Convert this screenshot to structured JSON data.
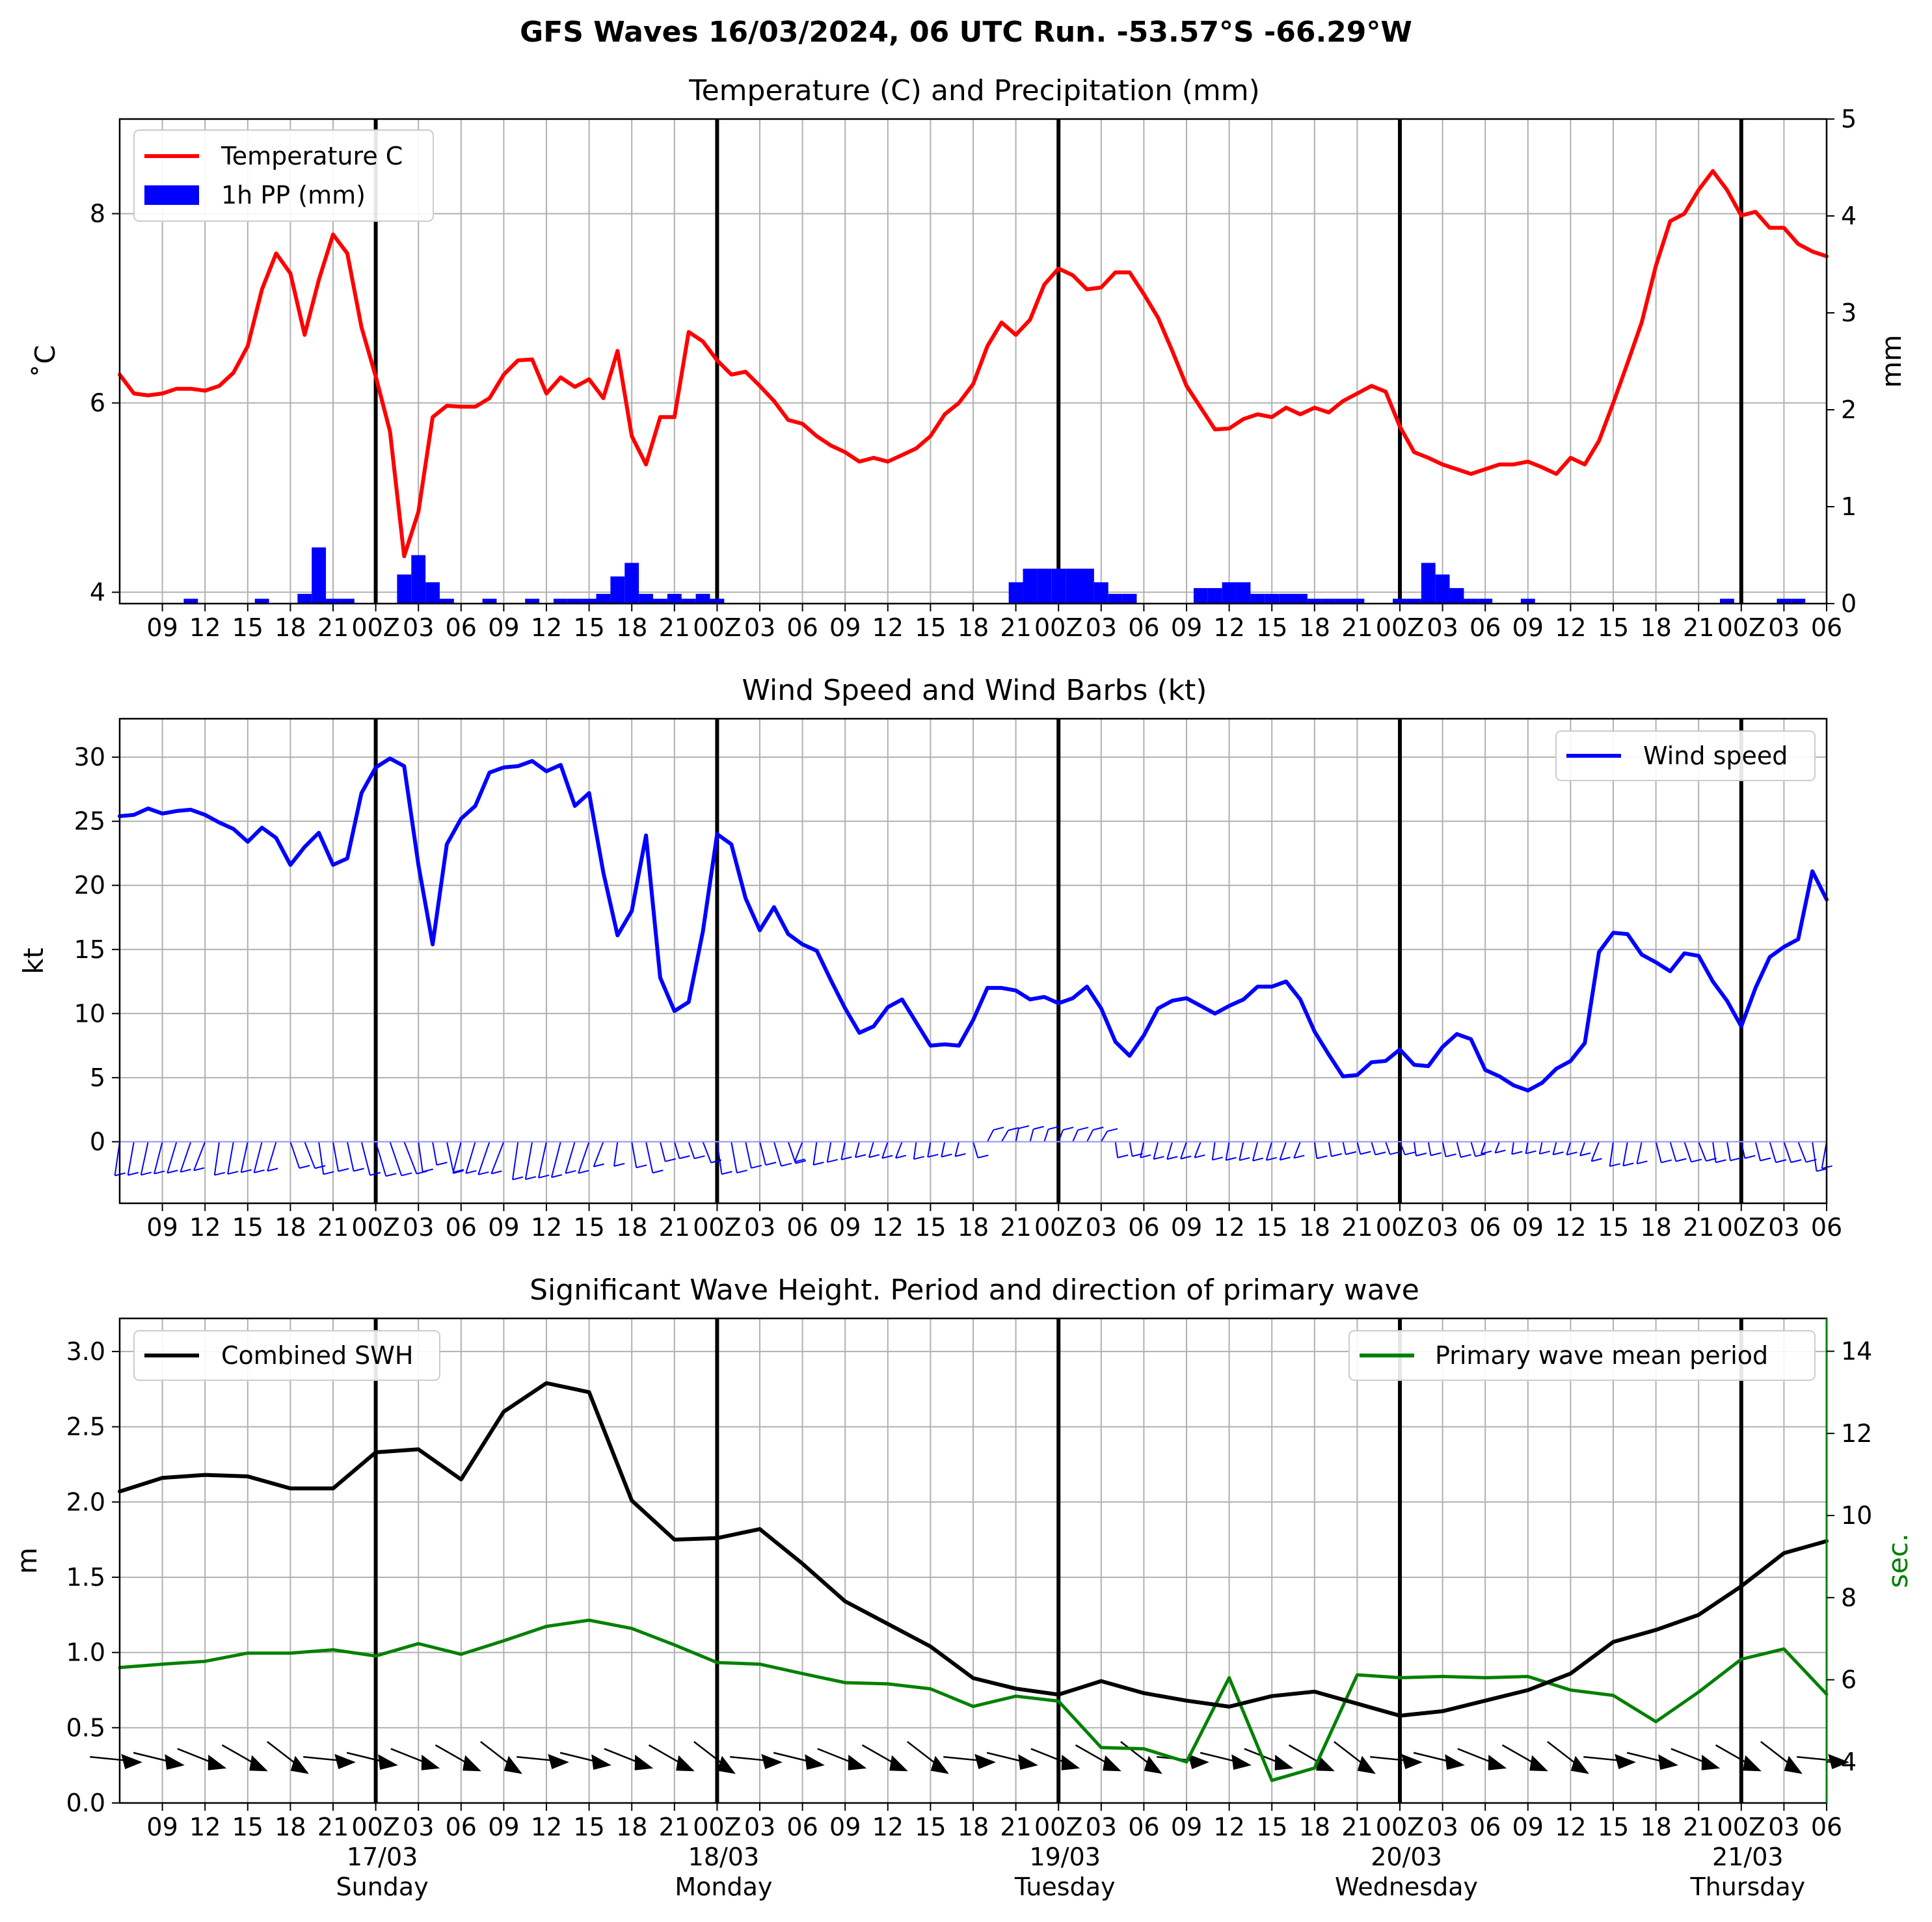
{
  "figure": {
    "suptitle": "GFS Waves 16/03/2024, 06 UTC Run. -53.57°S -66.29°W"
  },
  "chart_data": [
    {
      "type": "line",
      "title": "Temperature (C) and Precipitation (mm)",
      "ylabel": "$^\\circ$C",
      "ylabel_display": "˚C",
      "y2label": "mm",
      "ylim": [
        3.88,
        9.0
      ],
      "y2lim": [
        0,
        5
      ],
      "yticks": [
        4,
        6,
        8
      ],
      "y2ticks": [
        0,
        1,
        2,
        3,
        4,
        5
      ],
      "xlim_hours": [
        0,
        120
      ],
      "grid": true,
      "legend": "top-left",
      "legend_labels": [
        "Temperature C",
        "1h PP (mm)"
      ],
      "colors": {
        "temperature": "#ff0000",
        "precip": "#0000ff"
      },
      "temperature_x_hours": [
        0,
        1,
        2,
        3,
        4,
        5,
        6,
        7,
        8,
        9,
        10,
        11,
        12,
        13,
        14,
        15,
        16,
        17,
        18,
        19,
        20,
        21,
        22,
        23,
        24,
        25,
        26,
        27,
        28,
        29,
        30,
        31,
        32,
        33,
        34,
        35,
        36,
        37,
        38,
        39,
        40,
        41,
        42,
        43,
        44,
        45,
        46,
        47,
        48,
        49,
        50,
        51,
        52,
        53,
        54,
        55,
        56,
        57,
        58,
        59,
        60,
        61,
        62,
        63,
        64,
        65,
        66,
        67,
        68,
        69,
        70,
        71,
        72,
        73,
        74,
        75,
        76,
        77,
        78,
        79,
        80,
        81,
        82,
        83,
        84,
        85,
        86,
        87,
        88,
        89,
        90,
        91,
        92,
        93,
        94,
        95,
        96,
        97,
        98,
        99,
        100,
        101,
        102,
        103,
        104,
        105,
        106,
        107,
        108,
        109,
        110,
        111,
        112,
        113,
        114,
        115,
        116,
        117,
        118,
        119,
        120
      ],
      "temperature_values": [
        6.3,
        6.1,
        6.08,
        6.1,
        6.15,
        6.15,
        6.13,
        6.18,
        6.32,
        6.6,
        7.2,
        7.58,
        7.37,
        6.72,
        7.3,
        7.78,
        7.58,
        6.8,
        6.28,
        5.7,
        4.38,
        4.85,
        5.85,
        5.97,
        5.96,
        5.96,
        6.05,
        6.3,
        6.45,
        6.46,
        6.1,
        6.27,
        6.17,
        6.25,
        6.05,
        6.55,
        5.65,
        5.35,
        5.85,
        5.85,
        6.75,
        6.65,
        6.45,
        6.3,
        6.33,
        6.18,
        6.02,
        5.82,
        5.78,
        5.65,
        5.55,
        5.48,
        5.38,
        5.42,
        5.38,
        5.45,
        5.52,
        5.65,
        5.88,
        6.0,
        6.2,
        6.6,
        6.85,
        6.72,
        6.88,
        7.25,
        7.42,
        7.35,
        7.2,
        7.22,
        7.38,
        7.38,
        7.15,
        6.9,
        6.55,
        6.18,
        5.95,
        5.72,
        5.73,
        5.83,
        5.88,
        5.85,
        5.95,
        5.88,
        5.95,
        5.9,
        6.02,
        6.1,
        6.18,
        6.12,
        5.75,
        5.48,
        5.42,
        5.35,
        5.3,
        5.25,
        5.3,
        5.35,
        5.35,
        5.38,
        5.32,
        5.25,
        5.42,
        5.35,
        5.6,
        6.0,
        6.42,
        6.85,
        7.45,
        7.92,
        8.0,
        8.25,
        8.45,
        8.25,
        7.98,
        8.02,
        7.85,
        7.85,
        7.68,
        7.6,
        7.55
      ],
      "precip_x_hours": [
        5,
        10,
        13,
        14,
        15,
        16,
        20,
        21,
        22,
        23,
        26,
        29,
        31,
        32,
        33,
        34,
        35,
        36,
        37,
        38,
        39,
        40,
        41,
        42,
        63,
        64,
        65,
        66,
        67,
        68,
        69,
        70,
        71,
        76,
        77,
        78,
        79,
        80,
        81,
        82,
        83,
        84,
        85,
        86,
        87,
        90,
        91,
        92,
        93,
        94,
        95,
        96,
        99,
        113,
        117,
        118
      ],
      "precip_values": [
        0.05,
        0.05,
        0.1,
        0.58,
        0.05,
        0.05,
        0.3,
        0.5,
        0.22,
        0.05,
        0.05,
        0.05,
        0.05,
        0.05,
        0.05,
        0.1,
        0.28,
        0.42,
        0.1,
        0.05,
        0.1,
        0.05,
        0.1,
        0.05,
        0.22,
        0.36,
        0.36,
        0.36,
        0.36,
        0.36,
        0.22,
        0.1,
        0.1,
        0.16,
        0.16,
        0.22,
        0.22,
        0.1,
        0.1,
        0.1,
        0.1,
        0.05,
        0.05,
        0.05,
        0.05,
        0.05,
        0.05,
        0.42,
        0.3,
        0.16,
        0.05,
        0.05,
        0.05,
        0.05,
        0.05,
        0.05
      ]
    },
    {
      "type": "line",
      "title": "Wind Speed and Wind Barbs (kt)",
      "ylabel": "kt",
      "ylim": [
        -4.8,
        33
      ],
      "yticks": [
        0,
        5,
        10,
        15,
        20,
        25,
        30
      ],
      "xlim_hours": [
        0,
        120
      ],
      "grid": true,
      "legend": "top-right",
      "legend_labels": [
        "Wind speed"
      ],
      "colors": {
        "wind": "#0000ff",
        "barbs": "#0000ff"
      },
      "x_hours": [
        0,
        1,
        2,
        3,
        4,
        5,
        6,
        7,
        8,
        9,
        10,
        11,
        12,
        13,
        14,
        15,
        16,
        17,
        18,
        19,
        20,
        21,
        22,
        23,
        24,
        25,
        26,
        27,
        28,
        29,
        30,
        31,
        32,
        33,
        34,
        35,
        36,
        37,
        38,
        39,
        40,
        41,
        42,
        43,
        44,
        45,
        46,
        47,
        48,
        49,
        50,
        51,
        52,
        53,
        54,
        55,
        56,
        57,
        58,
        59,
        60,
        61,
        62,
        63,
        64,
        65,
        66,
        67,
        68,
        69,
        70,
        71,
        72,
        73,
        74,
        75,
        76,
        77,
        78,
        79,
        80,
        81,
        82,
        83,
        84,
        85,
        86,
        87,
        88,
        89,
        90,
        91,
        92,
        93,
        94,
        95,
        96,
        97,
        98,
        99,
        100,
        101,
        102,
        103,
        104,
        105,
        106,
        107,
        108,
        109,
        110,
        111,
        112,
        113,
        114,
        115,
        116,
        117,
        118,
        119,
        120
      ],
      "values": [
        25.4,
        25.5,
        26.0,
        25.6,
        25.8,
        25.9,
        25.5,
        24.9,
        24.4,
        23.4,
        24.5,
        23.7,
        21.6,
        23.0,
        24.1,
        21.6,
        22.1,
        27.2,
        29.2,
        29.9,
        29.3,
        21.6,
        15.4,
        23.2,
        25.2,
        26.2,
        28.8,
        29.2,
        29.3,
        29.7,
        28.9,
        29.4,
        26.2,
        27.2,
        21.0,
        16.1,
        18.0,
        23.9,
        12.8,
        10.2,
        10.9,
        16.4,
        24.0,
        23.2,
        19.0,
        16.5,
        18.3,
        16.2,
        15.4,
        14.9,
        12.6,
        10.4,
        8.5,
        9.0,
        10.5,
        11.1,
        9.3,
        7.5,
        7.6,
        7.5,
        9.5,
        12.0,
        12.0,
        11.8,
        11.1,
        11.3,
        10.8,
        11.2,
        12.1,
        10.4,
        7.8,
        6.7,
        8.3,
        10.4,
        11.0,
        11.2,
        10.6,
        10.0,
        10.6,
        11.1,
        12.1,
        12.1,
        12.5,
        11.1,
        8.6,
        6.8,
        5.1,
        5.2,
        6.2,
        6.3,
        7.2,
        6.0,
        5.9,
        7.4,
        8.4,
        8.0,
        5.6,
        5.1,
        4.4,
        4.0,
        4.6,
        5.7,
        6.3,
        7.7,
        14.8,
        16.3,
        16.2,
        14.6,
        14.0,
        13.3,
        14.7,
        14.5,
        12.5,
        11.0,
        9.0,
        12.0,
        14.4,
        15.2,
        15.8,
        21.1,
        18.9
      ]
    },
    {
      "type": "line",
      "title": "Significant Wave Height. Period and direction of primary wave",
      "ylabel": "m",
      "y2label": "sec.",
      "ylim": [
        0,
        3.22
      ],
      "y2lim": [
        3.0,
        14.8
      ],
      "yticks": [
        0.0,
        0.5,
        1.0,
        1.5,
        2.0,
        2.5,
        3.0
      ],
      "y2ticks": [
        4,
        6,
        8,
        10,
        12,
        14
      ],
      "xlim_hours": [
        0,
        120
      ],
      "grid": true,
      "legend_left": "top-left",
      "legend_right": "top-right",
      "legend_labels": [
        "Combined SWH",
        "Primary wave mean period"
      ],
      "colors": {
        "swh": "#000000",
        "period": "#008000",
        "arrows": "#000000"
      },
      "x_hours": [
        0,
        3,
        6,
        9,
        12,
        15,
        18,
        21,
        24,
        27,
        30,
        33,
        36,
        39,
        42,
        45,
        48,
        51,
        54,
        57,
        60,
        63,
        66,
        69,
        72,
        75,
        78,
        81,
        84,
        87,
        90,
        93,
        96,
        99,
        102,
        105,
        108,
        111,
        114,
        117,
        120
      ],
      "swh_values": [
        2.07,
        2.16,
        2.18,
        2.17,
        2.09,
        2.09,
        2.33,
        2.35,
        2.15,
        2.6,
        2.79,
        2.73,
        2.01,
        1.75,
        1.76,
        1.82,
        1.59,
        1.34,
        1.19,
        1.04,
        0.83,
        0.76,
        0.72,
        0.81,
        0.73,
        0.68,
        0.64,
        0.71,
        0.74,
        0.66,
        0.58,
        0.61,
        0.68,
        0.75,
        0.86,
        1.07,
        1.15,
        1.25,
        1.44,
        1.66,
        1.74
      ],
      "period_values": [
        6.3,
        6.38,
        6.45,
        6.65,
        6.65,
        6.73,
        6.58,
        6.88,
        6.62,
        6.95,
        7.3,
        7.45,
        7.25,
        6.85,
        6.42,
        6.38,
        6.15,
        5.93,
        5.9,
        5.78,
        5.35,
        5.6,
        5.48,
        4.35,
        4.32,
        4.0,
        6.05,
        3.55,
        3.85,
        6.12,
        6.05,
        6.08,
        6.05,
        6.08,
        5.75,
        5.62,
        4.98,
        5.7,
        6.5,
        6.75,
        5.65
      ]
    }
  ],
  "time_axis": {
    "tick_hours": [
      3,
      6,
      9,
      12,
      15,
      18,
      21,
      24,
      27,
      30,
      33,
      36,
      39,
      42,
      45,
      48,
      51,
      54,
      57,
      60,
      63,
      66,
      69,
      72,
      75,
      78,
      81,
      84,
      87,
      90,
      93,
      96,
      99,
      102,
      105,
      108,
      111,
      114,
      117,
      120
    ],
    "tick_labels": [
      "09",
      "12",
      "15",
      "18",
      "21",
      "00Z",
      "03",
      "06",
      "09",
      "12",
      "15",
      "18",
      "21",
      "00Z",
      "03",
      "06",
      "09",
      "12",
      "15",
      "18",
      "21",
      "00Z",
      "03",
      "06",
      "09",
      "12",
      "15",
      "18",
      "21",
      "00Z",
      "03",
      "06",
      "09",
      "12",
      "15",
      "18",
      "21",
      "00Z",
      "03",
      "06"
    ],
    "day_line_hours": [
      18,
      42,
      66,
      90,
      114
    ],
    "day_labels": [
      {
        "date": "17/03",
        "weekday": "Sunday"
      },
      {
        "date": "18/03",
        "weekday": "Monday"
      },
      {
        "date": "19/03",
        "weekday": "Tuesday"
      },
      {
        "date": "20/03",
        "weekday": "Wednesday"
      },
      {
        "date": "21/03",
        "weekday": "Thursday"
      }
    ]
  }
}
